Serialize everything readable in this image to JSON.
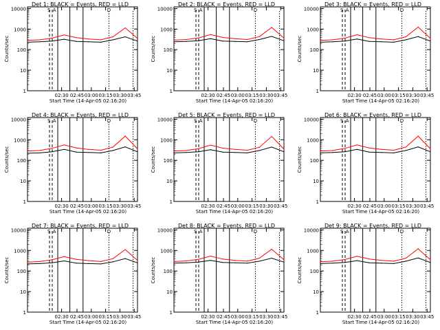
{
  "chart_data": {
    "type": "line",
    "y_scale": "log",
    "ylim": [
      1,
      12000
    ],
    "y_ticks": [
      1,
      10,
      100,
      1000,
      10000
    ],
    "y_tick_labels": [
      "1",
      "10",
      "100",
      "1000",
      "10000"
    ],
    "x_tick_labels": [
      "02:30",
      "02:45",
      "03:00",
      "03:15",
      "03:30",
      "03:45"
    ],
    "xlabel": "Start Time (14-Apr-05 02:16:20)",
    "ylabel": "Counts/sec",
    "colors": {
      "events": "#000000",
      "lld": "#ff0000"
    },
    "panels": [
      {
        "title": "Det 1: BLACK = Events, RED = LLD",
        "flags": [
          "S",
          "A",
          "D"
        ],
        "time_x": [
          0,
          10,
          20,
          30,
          40,
          50,
          60,
          70,
          80,
          90
        ],
        "events": [
          230,
          240,
          260,
          320,
          250,
          240,
          230,
          300,
          420,
          260
        ],
        "lld": [
          280,
          300,
          360,
          520,
          380,
          330,
          300,
          420,
          1150,
          350
        ]
      },
      {
        "title": "Det 2: BLACK = Events, RED = LLD",
        "flags": [
          "S",
          "A",
          "D"
        ],
        "time_x": [
          0,
          10,
          20,
          30,
          40,
          50,
          60,
          70,
          80,
          90
        ],
        "events": [
          240,
          250,
          270,
          340,
          260,
          250,
          240,
          310,
          440,
          270
        ],
        "lld": [
          290,
          310,
          370,
          540,
          390,
          340,
          310,
          430,
          1200,
          360
        ]
      },
      {
        "title": "Det 3: BLACK = Events, RED = LLD",
        "flags": [
          "S",
          "A",
          "D"
        ],
        "time_x": [
          0,
          10,
          20,
          30,
          40,
          50,
          60,
          70,
          80,
          90
        ],
        "events": [
          230,
          240,
          260,
          330,
          250,
          240,
          230,
          300,
          430,
          260
        ],
        "lld": [
          280,
          300,
          360,
          530,
          380,
          330,
          300,
          420,
          1250,
          350
        ]
      },
      {
        "title": "Det 4: BLACK = Events, RED = LLD",
        "flags": [
          "S",
          "A",
          "D"
        ],
        "time_x": [
          0,
          10,
          20,
          30,
          40,
          50,
          60,
          70,
          80,
          90
        ],
        "events": [
          220,
          230,
          260,
          340,
          250,
          240,
          230,
          300,
          450,
          260
        ],
        "lld": [
          280,
          300,
          380,
          560,
          400,
          340,
          310,
          440,
          1500,
          360
        ]
      },
      {
        "title": "Det 5: BLACK = Events, RED = LLD",
        "flags": [
          "S",
          "A",
          "D"
        ],
        "time_x": [
          0,
          10,
          20,
          30,
          40,
          50,
          60,
          70,
          80,
          90
        ],
        "events": [
          230,
          240,
          260,
          330,
          250,
          240,
          230,
          300,
          440,
          260
        ],
        "lld": [
          280,
          300,
          370,
          550,
          390,
          340,
          310,
          430,
          1450,
          350
        ]
      },
      {
        "title": "Det 6: BLACK = Events, RED = LLD",
        "flags": [
          "S",
          "A",
          "D"
        ],
        "time_x": [
          0,
          10,
          20,
          30,
          40,
          50,
          60,
          70,
          80,
          90
        ],
        "events": [
          230,
          240,
          260,
          340,
          250,
          240,
          230,
          300,
          450,
          260
        ],
        "lld": [
          280,
          300,
          380,
          560,
          400,
          340,
          310,
          440,
          1500,
          360
        ]
      },
      {
        "title": "Det 7: BLACK = Events, RED = LLD",
        "flags": [
          "S",
          "A",
          "D"
        ],
        "time_x": [
          0,
          10,
          20,
          30,
          40,
          50,
          60,
          70,
          80,
          90
        ],
        "events": [
          220,
          230,
          250,
          310,
          240,
          230,
          220,
          280,
          400,
          250
        ],
        "lld": [
          270,
          290,
          350,
          500,
          370,
          320,
          290,
          400,
          1100,
          330
        ]
      },
      {
        "title": "Det 8: BLACK = Events, RED = LLD",
        "flags": [
          "S",
          "A",
          "D"
        ],
        "time_x": [
          0,
          10,
          20,
          30,
          40,
          50,
          60,
          70,
          80,
          90
        ],
        "events": [
          240,
          250,
          270,
          330,
          260,
          250,
          240,
          300,
          420,
          270
        ],
        "lld": [
          290,
          310,
          370,
          530,
          380,
          330,
          300,
          420,
          1150,
          350
        ]
      },
      {
        "title": "Det 9: BLACK = Events, RED = LLD",
        "flags": [
          "S",
          "A",
          "D"
        ],
        "time_x": [
          0,
          10,
          20,
          30,
          40,
          50,
          60,
          70,
          80,
          90
        ],
        "events": [
          230,
          240,
          260,
          320,
          250,
          240,
          230,
          300,
          430,
          260
        ],
        "lld": [
          280,
          300,
          360,
          520,
          380,
          330,
          300,
          420,
          1200,
          350
        ]
      }
    ]
  }
}
